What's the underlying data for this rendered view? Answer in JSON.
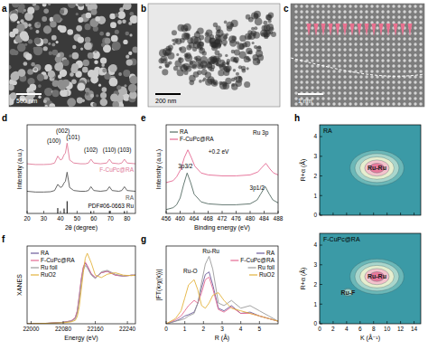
{
  "images": [
    {
      "label": "a",
      "scale_bar": "500 nm"
    },
    {
      "label": "b",
      "scale_bar": "200 nm"
    },
    {
      "label": "c",
      "scale_bar": "1 nm"
    }
  ],
  "chart_data": [
    {
      "type": "line",
      "title": "d",
      "x_label": "2θ (degree)",
      "y_label": "Intensity (a.u.)",
      "xlim": [
        20,
        85
      ],
      "ylim": [
        0,
        5.8
      ],
      "xticks": [
        20,
        30,
        40,
        50,
        60,
        70,
        80
      ],
      "tick_labels": "x",
      "legend": "inline",
      "x": [
        20,
        25,
        30,
        34,
        36.5,
        38.4,
        40,
        41,
        42.2,
        43,
        44,
        45.5,
        48,
        52,
        55,
        56.8,
        58.3,
        60,
        64,
        67.8,
        69.4,
        71,
        75,
        76.8,
        78.4,
        80,
        85
      ],
      "series": [
        {
          "name": "F-CuPc@RA",
          "color": "#e07a98",
          "values": [
            3.25,
            3.2,
            3.2,
            3.22,
            3.3,
            3.75,
            3.5,
            3.55,
            3.85,
            3.95,
            4.6,
            3.5,
            3.3,
            3.25,
            3.25,
            3.3,
            3.55,
            3.3,
            3.25,
            3.3,
            3.55,
            3.3,
            3.25,
            3.3,
            3.55,
            3.3,
            3.25
          ]
        },
        {
          "name": "RA",
          "color": "#555555",
          "values": [
            1.45,
            1.4,
            1.4,
            1.42,
            1.5,
            1.9,
            1.7,
            1.75,
            2.0,
            2.1,
            2.7,
            1.7,
            1.5,
            1.45,
            1.45,
            1.5,
            1.75,
            1.5,
            1.45,
            1.5,
            1.75,
            1.5,
            1.45,
            1.5,
            1.75,
            1.5,
            1.45
          ]
        },
        {
          "name": "PDF#06-0663 Ru",
          "type": "bar",
          "color": "#000000",
          "x": [
            38.4,
            42.2,
            44.0,
            58.3,
            69.4,
            78.4
          ],
          "values": [
            0.35,
            0.32,
            0.8,
            0.15,
            0.17,
            0.15
          ]
        }
      ],
      "annotations": [
        {
          "text": "(100)",
          "x": 36,
          "y": 4.6
        },
        {
          "text": "(002)",
          "x": 41.5,
          "y": 5.25
        },
        {
          "text": "(101)",
          "x": 47.5,
          "y": 4.85
        },
        {
          "text": "(102)",
          "x": 58.3,
          "y": 4.0
        },
        {
          "text": "(110)",
          "x": 69.4,
          "y": 4.0
        },
        {
          "text": "(103)",
          "x": 78.4,
          "y": 4.0
        }
      ]
    },
    {
      "type": "line",
      "title": "e",
      "x_label": "Binding energy (eV)",
      "y_label": "Intensity (a.u.)",
      "xlim": [
        456,
        488
      ],
      "ylim": [
        0,
        4.6
      ],
      "xticks": [
        456,
        460,
        464,
        468,
        472,
        476,
        480,
        484,
        488
      ],
      "tick_labels": "x",
      "legend": "top-left",
      "series": [
        {
          "name": "RA",
          "color": "#556b63",
          "x": [
            456,
            458,
            459,
            460,
            461,
            462,
            463,
            464,
            466,
            468,
            472,
            476,
            480,
            482,
            483,
            484.3,
            485.5,
            486.5,
            488
          ],
          "values": [
            0.2,
            0.3,
            0.45,
            0.8,
            1.5,
            2.1,
            1.6,
            1.0,
            0.6,
            0.5,
            0.45,
            0.45,
            0.5,
            0.7,
            1.0,
            1.4,
            1.0,
            0.7,
            0.55
          ]
        },
        {
          "name": "F-CuPc@RA",
          "color": "#e46a93",
          "x": [
            456,
            458,
            459,
            460.2,
            461.2,
            462.2,
            463.2,
            464.2,
            466,
            468,
            472,
            476,
            480,
            482.2,
            483.2,
            484.5,
            485.7,
            486.7,
            488
          ],
          "values": [
            1.6,
            1.7,
            1.9,
            2.3,
            2.9,
            3.3,
            2.9,
            2.45,
            2.1,
            2.0,
            1.95,
            1.95,
            2.0,
            2.15,
            2.35,
            2.6,
            2.3,
            2.1,
            2.0
          ]
        }
      ],
      "annotations": [
        {
          "text": "3p3/2",
          "x": 461.5,
          "y": 2.35
        },
        {
          "text": "3p1/2",
          "x": 482,
          "y": 1.2
        },
        {
          "text": "+0.2 eV",
          "x": 471,
          "y": 3.1
        },
        {
          "text": "Ru 3p",
          "x": 483,
          "y": 4.1
        }
      ]
    },
    {
      "type": "line",
      "title": "f",
      "x_label": "Energy (eV)",
      "y_label": "XANES",
      "xlim": [
        21990,
        22260
      ],
      "ylim": [
        0,
        1.6
      ],
      "xticks": [
        22000,
        22080,
        22160,
        22240
      ],
      "tick_labels": "x",
      "legend": "top-left",
      "x": [
        21990,
        22040,
        22080,
        22100,
        22110,
        22115,
        22120,
        22125,
        22130,
        22135,
        22140,
        22150,
        22160,
        22175,
        22190,
        22210,
        22230,
        22250,
        22260
      ],
      "series": [
        {
          "name": "RA",
          "color": "#6b5b9a",
          "values": [
            0.0,
            0.01,
            0.03,
            0.06,
            0.12,
            0.25,
            0.55,
            0.9,
            1.15,
            1.25,
            1.18,
            1.02,
            0.95,
            1.05,
            1.08,
            1.0,
            0.98,
            1.0,
            1.0
          ]
        },
        {
          "name": "F-CuPc@RA",
          "color": "#e46a93",
          "values": [
            0.0,
            0.01,
            0.03,
            0.06,
            0.13,
            0.27,
            0.58,
            0.93,
            1.17,
            1.27,
            1.2,
            1.03,
            0.95,
            1.05,
            1.08,
            1.0,
            0.98,
            1.0,
            1.0
          ]
        },
        {
          "name": "Ru foil",
          "color": "#9a9a9a",
          "values": [
            0.0,
            0.01,
            0.03,
            0.05,
            0.1,
            0.22,
            0.5,
            0.85,
            1.1,
            1.2,
            1.15,
            1.0,
            0.93,
            1.07,
            1.1,
            1.02,
            0.98,
            1.0,
            1.0
          ]
        },
        {
          "name": "RuO2",
          "color": "#e3b23c",
          "values": [
            0.0,
            0.01,
            0.02,
            0.04,
            0.07,
            0.15,
            0.35,
            0.7,
            1.05,
            1.35,
            1.45,
            1.25,
            1.0,
            0.95,
            1.02,
            1.05,
            1.0,
            0.99,
            1.0
          ]
        }
      ]
    },
    {
      "type": "line",
      "title": "g",
      "x_label": "R (Å)",
      "y_label": "|FT(k²χ(k))|",
      "xlim": [
        0,
        6
      ],
      "ylim": [
        0,
        3
      ],
      "xticks": [
        0,
        1,
        2,
        3,
        4,
        5
      ],
      "tick_labels": "x",
      "legend": "top-right",
      "x": [
        0,
        0.5,
        0.8,
        1.0,
        1.2,
        1.5,
        1.7,
        1.9,
        2.1,
        2.3,
        2.5,
        2.8,
        3.1,
        3.5,
        4.0,
        4.5,
        5.0,
        5.5,
        6.0
      ],
      "series": [
        {
          "name": "RA",
          "color": "#6b5b9a",
          "values": [
            0,
            0.1,
            0.2,
            0.3,
            0.35,
            0.45,
            0.8,
            1.4,
            1.9,
            2.0,
            1.5,
            0.6,
            0.5,
            0.7,
            0.4,
            0.45,
            0.3,
            0.2,
            0.1
          ]
        },
        {
          "name": "F-CuPc@RA",
          "color": "#e46a93",
          "values": [
            0,
            0.15,
            0.3,
            0.5,
            0.7,
            0.9,
            0.8,
            1.2,
            1.7,
            1.8,
            1.35,
            0.55,
            0.45,
            0.65,
            0.4,
            0.4,
            0.3,
            0.2,
            0.1
          ]
        },
        {
          "name": "Ru foil",
          "color": "#9a9a9a",
          "values": [
            0,
            0.1,
            0.15,
            0.2,
            0.3,
            0.4,
            0.8,
            1.6,
            2.3,
            2.6,
            2.1,
            0.8,
            0.7,
            0.9,
            0.6,
            0.7,
            0.5,
            0.3,
            0.1
          ]
        },
        {
          "name": "RuO2",
          "color": "#e3b23c",
          "values": [
            0,
            0.2,
            0.5,
            1.0,
            1.5,
            1.7,
            1.3,
            0.7,
            0.6,
            0.8,
            1.1,
            1.2,
            0.9,
            0.6,
            0.5,
            0.4,
            0.3,
            0.2,
            0.1
          ]
        }
      ],
      "annotations": [
        {
          "text": "Ru-O",
          "x": 1.3,
          "y": 1.95
        },
        {
          "text": "Ru-Ru",
          "x": 2.4,
          "y": 2.72
        }
      ]
    },
    {
      "type": "contour",
      "title": "h",
      "subtitle": "RA",
      "y_label": "R+α (Å)",
      "xlim": [
        0,
        15
      ],
      "ylim": [
        0,
        4.6
      ],
      "xticks": [
        0,
        2,
        4,
        6,
        8,
        10,
        12,
        14
      ],
      "yticks": [
        0,
        1,
        2,
        3,
        4
      ],
      "tick_labels": "y",
      "peaks": [
        {
          "label": "Ru-Ru",
          "k": 8.5,
          "r": 2.4,
          "width_k": 4,
          "width_r": 0.9,
          "z": 1
        }
      ]
    },
    {
      "type": "contour",
      "subtitle": "F-CuPc@RA",
      "x_label": "K (Å⁻¹)",
      "y_label": "R+α (Å)",
      "xlim": [
        0,
        15
      ],
      "ylim": [
        0,
        4.6
      ],
      "xticks": [
        0,
        2,
        4,
        6,
        8,
        10,
        12,
        14
      ],
      "yticks": [
        0,
        1,
        2,
        3,
        4
      ],
      "tick_labels": true,
      "peaks": [
        {
          "label": "Ru-Ru",
          "k": 8.5,
          "r": 2.4,
          "width_k": 4,
          "width_r": 0.9,
          "z": 1
        },
        {
          "label": "Ru-F",
          "k": 4.2,
          "r": 1.6,
          "width_k": 2,
          "width_r": 0.5,
          "z": 0.4
        }
      ]
    }
  ]
}
